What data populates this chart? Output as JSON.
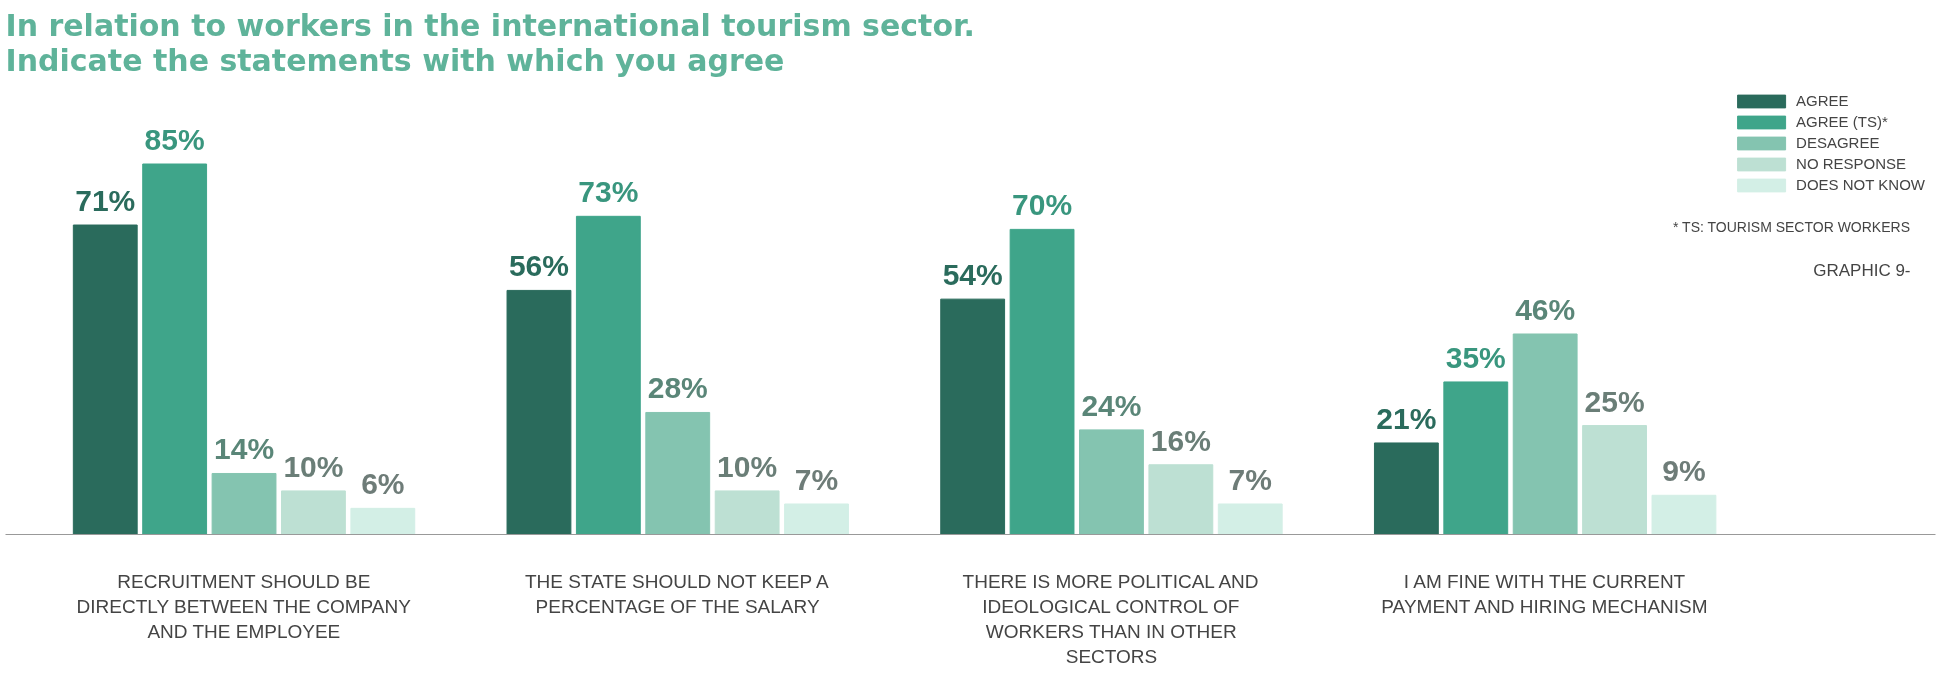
{
  "chart_data": {
    "type": "bar",
    "title": "In relation to workers in the international tourism sector. Indicate the statements with which you agree",
    "categories": [
      "RECRUITMENT SHOULD BE DIRECTLY BETWEEN THE COMPANY AND THE EMPLOYEE",
      "THE STATE SHOULD NOT KEEP A PERCENTAGE OF THE SALARY",
      "THERE IS MORE POLITICAL AND IDEOLOGICAL CONTROL OF WORKERS THAN IN OTHER SECTORS",
      "I AM FINE WITH THE CURRENT PAYMENT AND HIRING MECHANISM"
    ],
    "series": [
      {
        "name": "AGREE",
        "color": "#2a6b5c",
        "values": [
          71,
          56,
          54,
          21
        ],
        "value_labels": [
          "71%",
          "56%",
          "54%",
          "21%"
        ]
      },
      {
        "name": "AGREE (TS)*",
        "color": "#3fa58a",
        "values": [
          85,
          73,
          70,
          35
        ],
        "value_labels": [
          "85%",
          "73%",
          "70%",
          "35%"
        ]
      },
      {
        "name": "DESAGREE",
        "color": "#84c4b0",
        "values": [
          14,
          28,
          24,
          46
        ],
        "value_labels": [
          "14%",
          "28%",
          "24%",
          "46%"
        ]
      },
      {
        "name": "NO RESPONSE",
        "color": "#bde0d3",
        "values": [
          10,
          10,
          16,
          25
        ],
        "value_labels": [
          "10%",
          "10%",
          "16%",
          "25%"
        ]
      },
      {
        "name": "DOES NOT KNOW",
        "color": "#d3efe6",
        "values": [
          6,
          7,
          7,
          9
        ],
        "value_labels": [
          "6%",
          "7%",
          "7%",
          "9%"
        ]
      }
    ],
    "legend": "top right",
    "grid": false,
    "annotations": [
      "* TS: TOURISM SECTOR WORKERS",
      "GRAPHIC 9-"
    ]
  }
}
